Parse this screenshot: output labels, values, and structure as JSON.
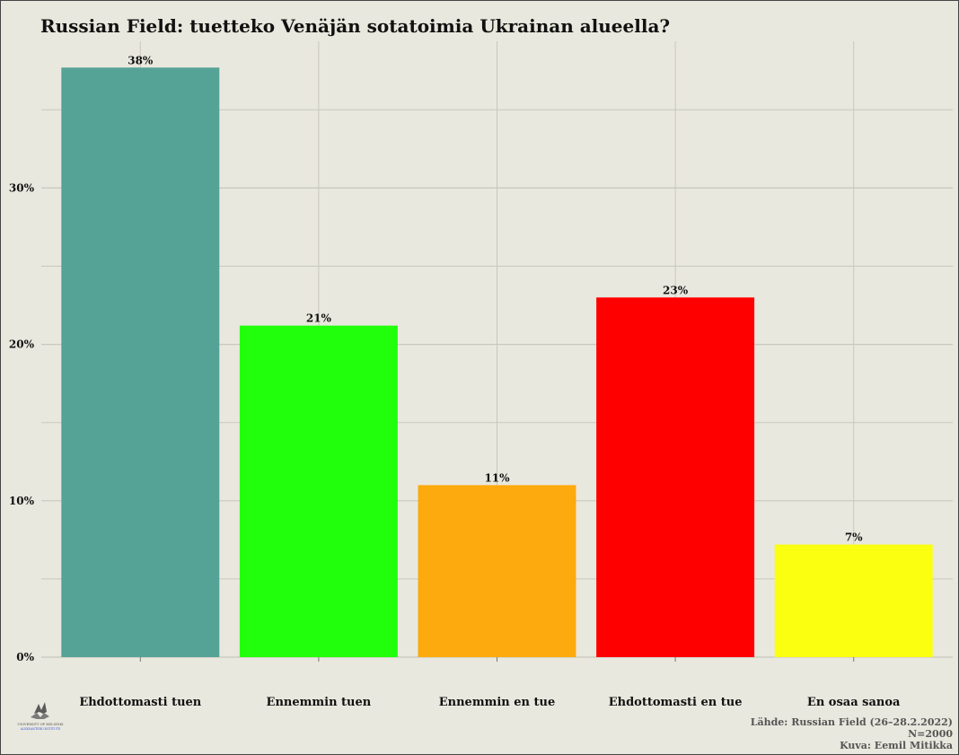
{
  "chart_data": {
    "type": "bar",
    "title": "Russian Field: tuetteko Venäjän sotatoimia Ukrainan alueella?",
    "xlabel": "",
    "ylabel": "",
    "categories": [
      "Ehdottomasti tuen",
      "Ennemmin tuen",
      "Ennemmin en tue",
      "Ehdottomasti en tue",
      "En osaa sanoa"
    ],
    "values": [
      37.7,
      21.2,
      11.0,
      23.0,
      7.2
    ],
    "data_labels": [
      "38%",
      "21%",
      "11%",
      "23%",
      "7%"
    ],
    "colors": [
      "#55a396",
      "#22ff0c",
      "#fcaa0d",
      "#ff0000",
      "#fbff10"
    ],
    "y_ticks": [
      0,
      10,
      20,
      30
    ],
    "y_tick_labels": [
      "0%",
      "10%",
      "20%",
      "30%"
    ],
    "ylim": [
      0,
      40
    ],
    "grid": true,
    "legend": "none"
  },
  "caption": {
    "source": "Lähde: Russian Field (26–28.2.2022)",
    "n": "N=2000",
    "credit": "Kuva: Eemil Mitikka"
  },
  "logo": {
    "text": "UNIVERSITY OF HELSINKI",
    "subtext": "ALEKSANTERI INSTITUTE",
    "icon": "university-logo-icon"
  }
}
